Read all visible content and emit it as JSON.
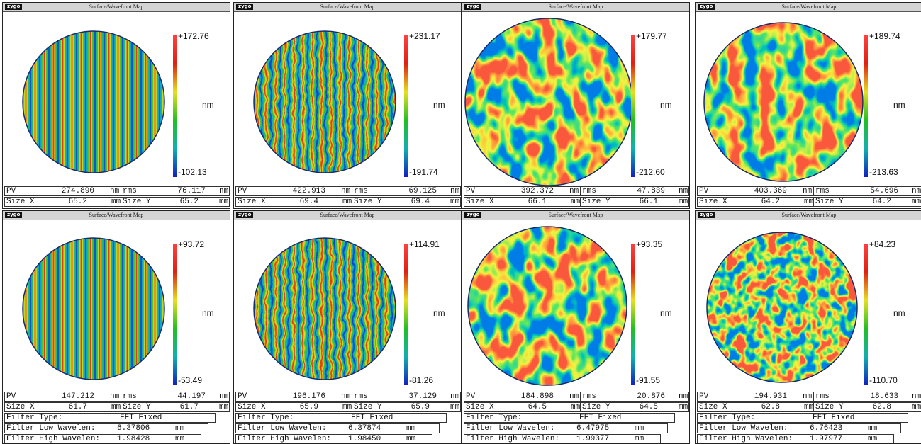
{
  "panels": [
    {
      "logo": "zygo",
      "title": "Surface/Wavefront Map",
      "scale_max": "+172.76",
      "scale_min": "-102.13",
      "scale_unit": "nm",
      "pv_label": "PV",
      "pv": "274.890",
      "pv_unit": "nm",
      "rms_label": "rms",
      "rms": "76.117",
      "rms_unit": "nm",
      "size_x_label": "Size X",
      "size_x": "65.2",
      "size_x_unit": "mm",
      "size_y_label": "Size Y",
      "size_y": "65.2",
      "size_y_unit": "mm"
    },
    {
      "logo": "zygo",
      "title": "Surface/Wavefront Map",
      "scale_max": "+231.17",
      "scale_min": "-191.74",
      "scale_unit": "nm",
      "pv_label": "PV",
      "pv": "422.913",
      "pv_unit": "nm",
      "rms_label": "rms",
      "rms": "69.125",
      "rms_unit": "nm",
      "size_x_label": "Size X",
      "size_x": "69.4",
      "size_x_unit": "mm",
      "size_y_label": "Size Y",
      "size_y": "69.4",
      "size_y_unit": "mm"
    },
    {
      "logo": "zygo",
      "title": "Surface/Wavefront Map",
      "scale_max": "+179.77",
      "scale_min": "-212.60",
      "scale_unit": "nm",
      "pv_label": "PV",
      "pv": "392.372",
      "pv_unit": "nm",
      "rms_label": "rms",
      "rms": "47.839",
      "rms_unit": "nm",
      "size_x_label": "Size X",
      "size_x": "66.1",
      "size_x_unit": "mm",
      "size_y_label": "Size Y",
      "size_y": "66.1",
      "size_y_unit": "mm"
    },
    {
      "logo": "zygo",
      "title": "Surface/Wavefront Map",
      "scale_max": "+189.74",
      "scale_min": "-213.63",
      "scale_unit": "nm",
      "pv_label": "PV",
      "pv": "403.369",
      "pv_unit": "nm",
      "rms_label": "rms",
      "rms": "54.696",
      "rms_unit": "nm",
      "size_x_label": "Size X",
      "size_x": "64.2",
      "size_x_unit": "mm",
      "size_y_label": "Size Y",
      "size_y": "64.2",
      "size_y_unit": "mm"
    },
    {
      "logo": "zygo",
      "title": "Surface/Wavefront Map",
      "scale_max": "+93.72",
      "scale_min": "-53.49",
      "scale_unit": "nm",
      "pv_label": "PV",
      "pv": "147.212",
      "pv_unit": "nm",
      "rms_label": "rms",
      "rms": "44.197",
      "rms_unit": "nm",
      "size_x_label": "Size X",
      "size_x": "61.7",
      "size_x_unit": "mm",
      "size_y_label": "Size Y",
      "size_y": "61.7",
      "size_y_unit": "mm",
      "filter_type_label": "Filter Type:",
      "filter_type": "FFT Fixed",
      "filter_low_label": "Filter Low Wavelen:",
      "filter_low": "6.37806",
      "filter_low_unit": "mm",
      "filter_high_label": "Filter High Wavelen:",
      "filter_high": "1.98428",
      "filter_high_unit": "mm"
    },
    {
      "logo": "zygo",
      "title": "Surface/Wavefront Map",
      "scale_max": "+114.91",
      "scale_min": "-81.26",
      "scale_unit": "nm",
      "pv_label": "PV",
      "pv": "196.176",
      "pv_unit": "nm",
      "rms_label": "rms",
      "rms": "37.129",
      "rms_unit": "nm",
      "size_x_label": "Size X",
      "size_x": "65.9",
      "size_x_unit": "mm",
      "size_y_label": "Size Y",
      "size_y": "65.9",
      "size_y_unit": "mm",
      "filter_type_label": "Filter Type:",
      "filter_type": "FFT Fixed",
      "filter_low_label": "Filter Low Wavelen:",
      "filter_low": "6.37874",
      "filter_low_unit": "mm",
      "filter_high_label": "Filter High Wavelen:",
      "filter_high": "1.98450",
      "filter_high_unit": "mm"
    },
    {
      "logo": "zygo",
      "title": "Surface/Wavefront Map",
      "scale_max": "+93.35",
      "scale_min": "-91.55",
      "scale_unit": "nm",
      "pv_label": "PV",
      "pv": "184.898",
      "pv_unit": "nm",
      "rms_label": "rms",
      "rms": "20.876",
      "rms_unit": "nm",
      "size_x_label": "Size X",
      "size_x": "64.5",
      "size_x_unit": "mm",
      "size_y_label": "Size Y",
      "size_y": "64.5",
      "size_y_unit": "mm",
      "filter_type_label": "Filter Type:",
      "filter_type": "FFT Fixed",
      "filter_low_label": "Filter Low Wavelen:",
      "filter_low": "6.47975",
      "filter_low_unit": "mm",
      "filter_high_label": "Filter High Wavelen:",
      "filter_high": "1.99377",
      "filter_high_unit": "mm"
    },
    {
      "logo": "zygo",
      "title": "Surface/Wavefront Map",
      "scale_max": "+84.23",
      "scale_min": "-110.70",
      "scale_unit": "nm",
      "pv_label": "PV",
      "pv": "194.931",
      "pv_unit": "nm",
      "rms_label": "rms",
      "rms": "18.633",
      "rms_unit": "nm",
      "size_x_label": "Size X",
      "size_x": "62.8",
      "size_x_unit": "mm",
      "size_y_label": "Size Y",
      "size_y": "62.8",
      "size_y_unit": "mm",
      "filter_type_label": "Filter Type:",
      "filter_type": "FFT Fixed",
      "filter_low_label": "Filter Low Wavelen:",
      "filter_low": "6.76423",
      "filter_low_unit": "mm",
      "filter_high_label": "Filter High Wavelen:",
      "filter_high": "1.97977",
      "filter_high_unit": "mm"
    }
  ]
}
